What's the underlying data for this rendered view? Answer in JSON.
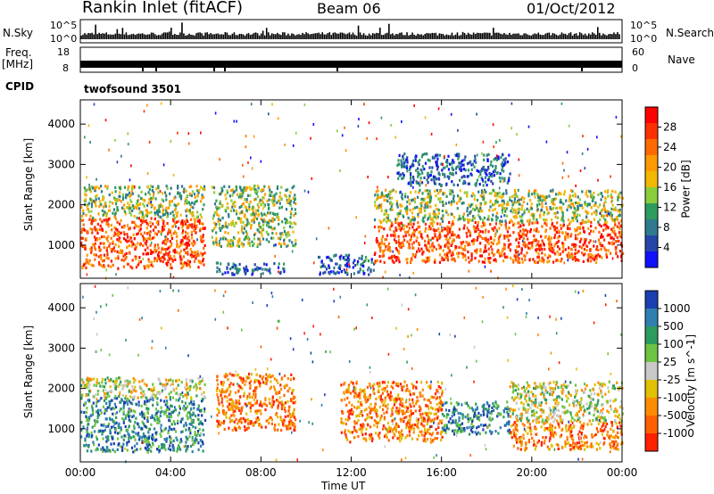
{
  "header": {
    "station": "Rankin Inlet (fitACF)",
    "beam": "Beam 06",
    "date": "01/Oct/2012"
  },
  "top_panels": {
    "nsky_label": "N.Sky",
    "nsky_ticks": [
      "10^5",
      "10^0"
    ],
    "nsearch_label": "N.Search",
    "nsearch_ticks": [
      "10^5",
      "10^0"
    ],
    "freq_label": "Freq.",
    "freq_unit": "[MHz]",
    "freq_ticks": [
      "18",
      "8"
    ],
    "nave_label": "Nave",
    "nave_ticks": [
      "60",
      "0"
    ],
    "cpid_label": "CPID",
    "cpid_value": "twofsound 3501"
  },
  "chart_data": [
    {
      "type": "heatmap",
      "name": "power",
      "ylabel": "Slant Range [km]",
      "xlabel": "Time UT",
      "x_ticks": [
        "00:00",
        "04:00",
        "08:00",
        "12:00",
        "16:00",
        "20:00",
        "00:00"
      ],
      "x_range_hours": [
        0,
        24
      ],
      "y_ticks": [
        1000,
        2000,
        3000,
        4000
      ],
      "ylim": [
        180,
        4600
      ],
      "colorbar_label": "Power [dB]",
      "colorbar_ticks": [
        "28",
        "24",
        "20",
        "16",
        "12",
        "8",
        "4"
      ],
      "colorbar_colors": [
        "#ff0000",
        "#ff3000",
        "#ff6a00",
        "#ff9900",
        "#f2b800",
        "#8acd3d",
        "#2e9b5e",
        "#2f7a8e",
        "#2546a8",
        "#1010ff"
      ],
      "regions": [
        {
          "t0": 0.0,
          "t1": 5.5,
          "r0": 450,
          "r1": 1700,
          "level": "high"
        },
        {
          "t0": 0.0,
          "t1": 5.5,
          "r0": 1700,
          "r1": 2500,
          "level": "mid"
        },
        {
          "t0": 5.8,
          "t1": 9.5,
          "r0": 1000,
          "r1": 2500,
          "level": "mid"
        },
        {
          "t0": 6.0,
          "t1": 9.0,
          "r0": 300,
          "r1": 600,
          "level": "low"
        },
        {
          "t0": 10.5,
          "t1": 13.0,
          "r0": 300,
          "r1": 800,
          "level": "low"
        },
        {
          "t0": 13.0,
          "t1": 24.0,
          "r0": 600,
          "r1": 1600,
          "level": "high"
        },
        {
          "t0": 13.0,
          "t1": 24.0,
          "r0": 1600,
          "r1": 2400,
          "level": "mid"
        },
        {
          "t0": 14.0,
          "t1": 19.0,
          "r0": 2500,
          "r1": 3300,
          "level": "low"
        }
      ]
    },
    {
      "type": "heatmap",
      "name": "velocity",
      "ylabel": "Slant Range [km]",
      "xlabel": "Time UT",
      "x_ticks": [
        "00:00",
        "04:00",
        "08:00",
        "12:00",
        "16:00",
        "20:00",
        "00:00"
      ],
      "x_range_hours": [
        0,
        24
      ],
      "y_ticks": [
        1000,
        2000,
        3000,
        4000
      ],
      "ylim": [
        180,
        4600
      ],
      "colorbar_label": "Velocity [m s^-1]",
      "colorbar_ticks": [
        "1000",
        "500",
        "100",
        "25",
        "-25",
        "-100",
        "-500",
        "-1000"
      ],
      "colorbar_colors": [
        "#1a3fb0",
        "#2f7fb0",
        "#2e9b5e",
        "#6cc442",
        "#c8c8c8",
        "#e0c000",
        "#ff8c00",
        "#ff6000",
        "#ff2000"
      ],
      "regions": [
        {
          "t0": 0.0,
          "t1": 5.5,
          "r0": 450,
          "r1": 1800,
          "level": "toward"
        },
        {
          "t0": 0.0,
          "t1": 5.5,
          "r0": 1800,
          "r1": 2300,
          "level": "mixed"
        },
        {
          "t0": 6.0,
          "t1": 9.5,
          "r0": 1000,
          "r1": 2400,
          "level": "away"
        },
        {
          "t0": 11.5,
          "t1": 16.0,
          "r0": 700,
          "r1": 2200,
          "level": "away"
        },
        {
          "t0": 16.0,
          "t1": 19.0,
          "r0": 900,
          "r1": 1700,
          "level": "toward"
        },
        {
          "t0": 19.0,
          "t1": 24.0,
          "r0": 500,
          "r1": 1200,
          "level": "away"
        },
        {
          "t0": 19.0,
          "t1": 24.0,
          "r0": 1200,
          "r1": 2200,
          "level": "mixed"
        }
      ]
    }
  ]
}
